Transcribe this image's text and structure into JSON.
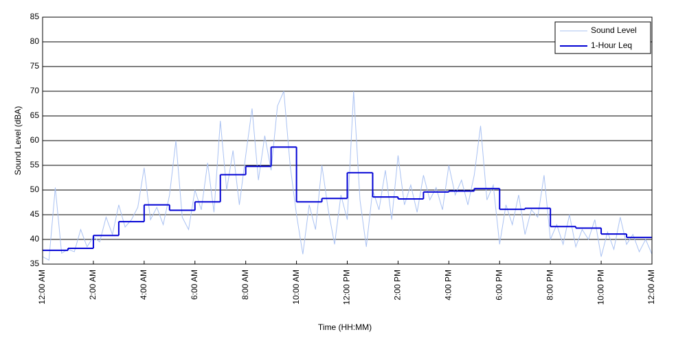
{
  "chart_data": {
    "type": "line",
    "xlabel": "Time (HH:MM)",
    "ylabel": "Sound Level (dBA)",
    "xlim": [
      0,
      24
    ],
    "ylim": [
      35,
      85
    ],
    "xticks": [
      {
        "value": 0,
        "label": "12:00 AM"
      },
      {
        "value": 2,
        "label": "2:00 AM"
      },
      {
        "value": 4,
        "label": "4:00 AM"
      },
      {
        "value": 6,
        "label": "6:00 AM"
      },
      {
        "value": 8,
        "label": "8:00 AM"
      },
      {
        "value": 10,
        "label": "10:00 AM"
      },
      {
        "value": 12,
        "label": "12:00 PM"
      },
      {
        "value": 14,
        "label": "2:00 PM"
      },
      {
        "value": 16,
        "label": "4:00 PM"
      },
      {
        "value": 18,
        "label": "6:00 PM"
      },
      {
        "value": 20,
        "label": "8:00 PM"
      },
      {
        "value": 22,
        "label": "10:00 PM"
      },
      {
        "value": 24,
        "label": "12:00 AM"
      }
    ],
    "yticks": [
      35,
      40,
      45,
      50,
      55,
      60,
      65,
      70,
      75,
      80,
      85
    ],
    "grid": true,
    "legend": "upper right",
    "series": [
      {
        "name": "Sound Level",
        "color": "#a9c1f2",
        "x": [
          0,
          0.25,
          0.5,
          0.75,
          1,
          1.25,
          1.5,
          1.75,
          2,
          2.25,
          2.5,
          2.75,
          3,
          3.25,
          3.5,
          3.75,
          4,
          4.25,
          4.5,
          4.75,
          5,
          5.25,
          5.5,
          5.75,
          6,
          6.25,
          6.5,
          6.75,
          7,
          7.25,
          7.5,
          7.75,
          8,
          8.25,
          8.5,
          8.75,
          9,
          9.25,
          9.5,
          9.75,
          10,
          10.25,
          10.5,
          10.75,
          11,
          11.25,
          11.5,
          11.75,
          12,
          12.25,
          12.5,
          12.75,
          13,
          13.25,
          13.5,
          13.75,
          14,
          14.25,
          14.5,
          14.75,
          15,
          15.25,
          15.5,
          15.75,
          16,
          16.25,
          16.5,
          16.75,
          17,
          17.25,
          17.5,
          17.75,
          18,
          18.25,
          18.5,
          18.75,
          19,
          19.25,
          19.5,
          19.75,
          20,
          20.25,
          20.5,
          20.75,
          21,
          21.25,
          21.5,
          21.75,
          22,
          22.25,
          22.5,
          22.75,
          23,
          23.25,
          23.5,
          23.75,
          24
        ],
        "values": [
          36.5,
          35.8,
          50.5,
          37.2,
          38,
          37.5,
          42,
          38.5,
          40.5,
          39.5,
          44.5,
          41,
          47,
          42.5,
          44,
          46.5,
          54.5,
          44,
          46.5,
          43,
          49,
          60,
          44.5,
          42,
          50,
          46,
          55.5,
          45.5,
          64,
          50,
          58,
          47,
          57,
          66.5,
          52,
          61,
          54,
          67,
          70,
          55,
          45,
          37,
          47,
          42,
          55,
          46,
          39,
          49,
          44,
          70,
          48,
          38.5,
          50,
          46,
          54,
          44,
          57,
          47,
          51,
          45.5,
          53,
          48,
          50.5,
          46,
          55,
          49,
          52,
          47,
          53,
          63,
          48,
          51,
          39,
          47,
          43,
          49,
          41,
          46,
          44.5,
          53,
          40,
          43,
          39,
          45,
          38.5,
          42,
          40,
          44,
          36.5,
          41.5,
          38,
          44.5,
          39,
          41,
          37.5,
          40,
          37
        ]
      },
      {
        "name": "1-Hour Leq",
        "color": "#0000d4",
        "bins": [
          0,
          1,
          2,
          3,
          4,
          5,
          6,
          7,
          8,
          9,
          10,
          11,
          12,
          13,
          14,
          15,
          16,
          17,
          18,
          19,
          20,
          21,
          22,
          23,
          24
        ],
        "values": [
          37.8,
          38.2,
          40.8,
          43.6,
          47,
          45.9,
          47.6,
          53.1,
          54.8,
          58.7,
          47.6,
          48.3,
          53.5,
          48.6,
          48.2,
          49.6,
          49.8,
          50.3,
          46.1,
          46.3,
          42.6,
          42.3,
          41.1,
          40.4
        ]
      }
    ]
  }
}
